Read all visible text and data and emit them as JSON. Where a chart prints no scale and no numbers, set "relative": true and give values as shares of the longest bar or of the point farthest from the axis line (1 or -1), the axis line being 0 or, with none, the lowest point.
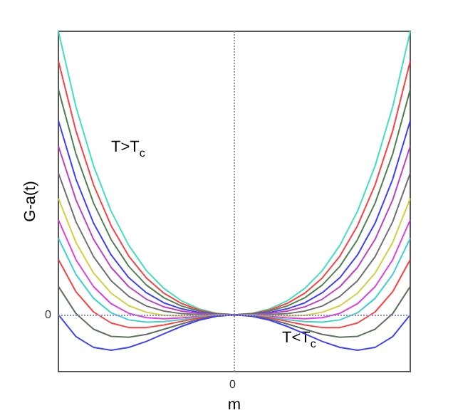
{
  "chart_data": {
    "type": "line",
    "relative": true,
    "xlabel": "m",
    "ylabel": "G-a(t)",
    "categories": [
      null,
      null,
      null,
      null,
      null,
      null,
      null,
      null,
      null,
      null,
      null,
      null,
      null,
      null,
      null,
      null,
      null,
      null,
      null,
      null,
      null
    ],
    "annotations": [
      "T>T$_{c}$",
      "T<T$_{c}$",
      "0"
    ],
    "ref_lines": [
      {
        "axis": "y",
        "value": 0,
        "label": "0",
        "line_style": "dotted",
        "color": "#9090c0"
      },
      {
        "axis": "x",
        "line_style": "dotted",
        "color": "#9090c0"
      }
    ],
    "series": [
      {
        "color": "#40e0c0",
        "values": [
          1,
          0.733,
          0.525,
          0.365,
          0.245,
          0.156,
          0.093,
          0.049,
          0.021,
          0.005,
          0,
          0.005,
          0.021,
          0.049,
          0.093,
          0.156,
          0.245,
          0.365,
          0.525,
          0.733,
          1
        ]
      },
      {
        "color": "#ff4040",
        "values": [
          0.895,
          0.648,
          0.458,
          0.314,
          0.207,
          0.13,
          0.076,
          0.04,
          0.017,
          0.004,
          0,
          0.004,
          0.017,
          0.04,
          0.076,
          0.13,
          0.207,
          0.314,
          0.458,
          0.648,
          0.895
        ]
      },
      {
        "color": "#508050",
        "values": [
          0.795,
          0.567,
          0.394,
          0.265,
          0.171,
          0.105,
          0.06,
          0.031,
          0.013,
          0.003,
          0,
          0.003,
          0.013,
          0.031,
          0.06,
          0.105,
          0.171,
          0.265,
          0.394,
          0.567,
          0.795
        ]
      },
      {
        "color": "#4040ff",
        "values": [
          0.685,
          0.478,
          0.323,
          0.211,
          0.131,
          0.078,
          0.042,
          0.021,
          0.008,
          0.002,
          0,
          0.002,
          0.008,
          0.021,
          0.042,
          0.078,
          0.131,
          0.211,
          0.323,
          0.478,
          0.685
        ]
      },
      {
        "color": "#c040c0",
        "values": [
          0.595,
          0.405,
          0.266,
          0.167,
          0.099,
          0.055,
          0.028,
          0.013,
          0.005,
          0.001,
          0,
          0.001,
          0.005,
          0.013,
          0.028,
          0.055,
          0.099,
          0.167,
          0.266,
          0.405,
          0.595
        ]
      },
      {
        "color": "#707070",
        "values": [
          0.5,
          0.328,
          0.205,
          0.12,
          0.065,
          0.031,
          0.013,
          0.004,
          0.001,
          0,
          0,
          0,
          0.001,
          0.004,
          0.013,
          0.031,
          0.065,
          0.12,
          0.205,
          0.328,
          0.5
        ]
      },
      {
        "color": "#d0d040",
        "values": [
          0.41,
          0.255,
          0.147,
          0.076,
          0.032,
          0.009,
          -0.002,
          -0.004,
          -0.003,
          -0.001,
          0,
          -0.001,
          -0.003,
          -0.004,
          -0.002,
          0.009,
          0.032,
          0.076,
          0.147,
          0.255,
          0.41
        ]
      },
      {
        "color": "#e040e0",
        "values": [
          0.335,
          0.194,
          0.099,
          0.039,
          0.005,
          -0.01,
          -0.014,
          -0.011,
          -0.006,
          -0.002,
          0,
          -0.002,
          -0.006,
          -0.011,
          -0.014,
          -0.01,
          0.005,
          0.039,
          0.099,
          0.194,
          0.335
        ]
      },
      {
        "color": "#40d0d0",
        "values": [
          0.27,
          0.142,
          0.058,
          0.007,
          -0.018,
          -0.026,
          -0.024,
          -0.017,
          -0.008,
          -0.002,
          0,
          -0.002,
          -0.008,
          -0.017,
          -0.024,
          -0.026,
          -0.018,
          0.007,
          0.058,
          0.142,
          0.27
        ]
      },
      {
        "color": "#ff4040",
        "values": [
          0.195,
          0.081,
          0.01,
          -0.029,
          -0.045,
          -0.045,
          -0.036,
          -0.023,
          -0.011,
          -0.003,
          0,
          -0.003,
          -0.011,
          -0.023,
          -0.036,
          -0.045,
          -0.045,
          -0.029,
          0.01,
          0.081,
          0.195
        ]
      },
      {
        "color": "#607060",
        "values": [
          0.1,
          0.004,
          -0.051,
          -0.076,
          -0.079,
          -0.069,
          -0.051,
          -0.032,
          -0.015,
          -0.004,
          0,
          -0.004,
          -0.015,
          -0.032,
          -0.051,
          -0.069,
          -0.079,
          -0.076,
          -0.051,
          0.004,
          0.1
        ]
      },
      {
        "color": "#4040ff",
        "values": [
          0,
          -0.077,
          -0.115,
          -0.125,
          -0.115,
          -0.094,
          -0.067,
          -0.041,
          -0.019,
          -0.005,
          0,
          -0.005,
          -0.019,
          -0.041,
          -0.067,
          -0.094,
          -0.115,
          -0.125,
          -0.115,
          -0.077,
          0
        ]
      }
    ]
  }
}
